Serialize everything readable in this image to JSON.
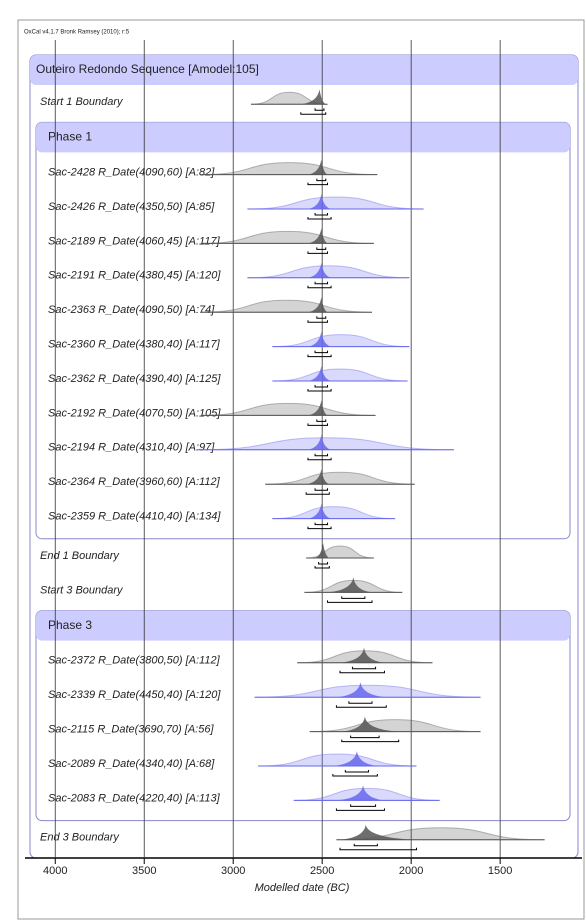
{
  "chart_data": {
    "type": "oxcal",
    "credit": "OxCal v4.1.7 Bronk Ramsey (2010); r:5",
    "xlabel": "Modelled date (BC)",
    "xlim": [
      4170,
      1040
    ],
    "xticks": [
      4000,
      3500,
      3000,
      2500,
      2000,
      1500
    ],
    "grid": true,
    "sequence": {
      "name": "Outeiro Redondo Sequence [Amodel:105]",
      "color": "#ccccff",
      "items": [
        {
          "label": "Start 1 Boundary",
          "color": "#555555",
          "prior": [
            2900,
            2470
          ],
          "range68": [
            2540,
            2490
          ],
          "range95": [
            2620,
            2480
          ]
        },
        {
          "phase": "Phase 1",
          "items": [
            {
              "label": "Sac-2428 R_Date(4090,60) [A:82]",
              "color": "#555555",
              "prior": [
                3180,
                2190
              ],
              "range68": [
                2530,
                2480
              ],
              "range95": [
                2580,
                2470
              ]
            },
            {
              "label": "Sac-2426 R_Date(4350,50) [A:85]",
              "color": "#6666ee",
              "prior": [
                2920,
                1930
              ],
              "range68": [
                2540,
                2470
              ],
              "range95": [
                2580,
                2450
              ]
            },
            {
              "label": "Sac-2189 R_Date(4060,45) [A:117]",
              "color": "#555555",
              "prior": [
                3180,
                2210
              ],
              "range68": [
                2530,
                2480
              ],
              "range95": [
                2580,
                2470
              ]
            },
            {
              "label": "Sac-2191 R_Date(4380,45) [A:120]",
              "color": "#6666ee",
              "prior": [
                2920,
                2010
              ],
              "range68": [
                2540,
                2470
              ],
              "range95": [
                2580,
                2450
              ]
            },
            {
              "label": "Sac-2363 R_Date(4090,50) [A:74]",
              "color": "#555555",
              "prior": [
                3180,
                2220
              ],
              "range68": [
                2530,
                2480
              ],
              "range95": [
                2580,
                2470
              ]
            },
            {
              "label": "Sac-2360 R_Date(4380,40) [A:117]",
              "color": "#6666ee",
              "prior": [
                2780,
                2010
              ],
              "range68": [
                2540,
                2470
              ],
              "range95": [
                2580,
                2450
              ]
            },
            {
              "label": "Sac-2362 R_Date(4390,40) [A:125]",
              "color": "#6666ee",
              "prior": [
                2780,
                2020
              ],
              "range68": [
                2540,
                2470
              ],
              "range95": [
                2580,
                2450
              ]
            },
            {
              "label": "Sac-2192 R_Date(4070,50) [A:105]",
              "color": "#555555",
              "prior": [
                3180,
                2200
              ],
              "range68": [
                2530,
                2480
              ],
              "range95": [
                2580,
                2470
              ]
            },
            {
              "label": "Sac-2194 R_Date(4310,40) [A:97]",
              "color": "#6666ee",
              "prior": [
                3200,
                1760
              ],
              "range68": [
                2540,
                2470
              ],
              "range95": [
                2580,
                2450
              ]
            },
            {
              "label": "Sac-2364 R_Date(3960,60) [A:112]",
              "color": "#555555",
              "prior": [
                2820,
                1980
              ],
              "range68": [
                2540,
                2470
              ],
              "range95": [
                2590,
                2460
              ]
            },
            {
              "label": "Sac-2359 R_Date(4410,40) [A:134]",
              "color": "#6666ee",
              "prior": [
                2780,
                2090
              ],
              "range68": [
                2540,
                2470
              ],
              "range95": [
                2580,
                2450
              ]
            }
          ]
        },
        {
          "label": "End 1 Boundary",
          "color": "#555555",
          "prior": [
            2590,
            2210
          ],
          "range68": [
            2520,
            2470
          ],
          "range95": [
            2540,
            2460
          ]
        },
        {
          "label": "Start 3 Boundary",
          "color": "#555555",
          "prior": [
            2600,
            2050
          ],
          "range68": [
            2390,
            2260
          ],
          "range95": [
            2470,
            2220
          ]
        },
        {
          "phase": "Phase 3",
          "items": [
            {
              "label": "Sac-2372 R_Date(3800,50) [A:112]",
              "color": "#555555",
              "prior": [
                2640,
                1880
              ],
              "range68": [
                2330,
                2200
              ],
              "range95": [
                2400,
                2150
              ]
            },
            {
              "label": "Sac-2339 R_Date(4450,40) [A:120]",
              "color": "#6666ee",
              "prior": [
                2880,
                1610
              ],
              "range68": [
                2350,
                2220
              ],
              "range95": [
                2420,
                2140
              ]
            },
            {
              "label": "Sac-2115 R_Date(3690,70) [A:56]",
              "color": "#555555",
              "prior": [
                2570,
                1610
              ],
              "range68": [
                2340,
                2180
              ],
              "range95": [
                2390,
                2070
              ]
            },
            {
              "label": "Sac-2089 R_Date(4340,40) [A:68]",
              "color": "#6666ee",
              "prior": [
                2860,
                1970
              ],
              "range68": [
                2370,
                2240
              ],
              "range95": [
                2440,
                2190
              ]
            },
            {
              "label": "Sac-2083 R_Date(4220,40) [A:113]",
              "color": "#6666ee",
              "prior": [
                2660,
                1840
              ],
              "range68": [
                2340,
                2200
              ],
              "range95": [
                2420,
                2150
              ]
            }
          ]
        },
        {
          "label": "End 3 Boundary",
          "color": "#555555",
          "prior": [
            2420,
            1250
          ],
          "range68": [
            2320,
            2190
          ],
          "range95": [
            2400,
            1970
          ]
        }
      ]
    }
  }
}
